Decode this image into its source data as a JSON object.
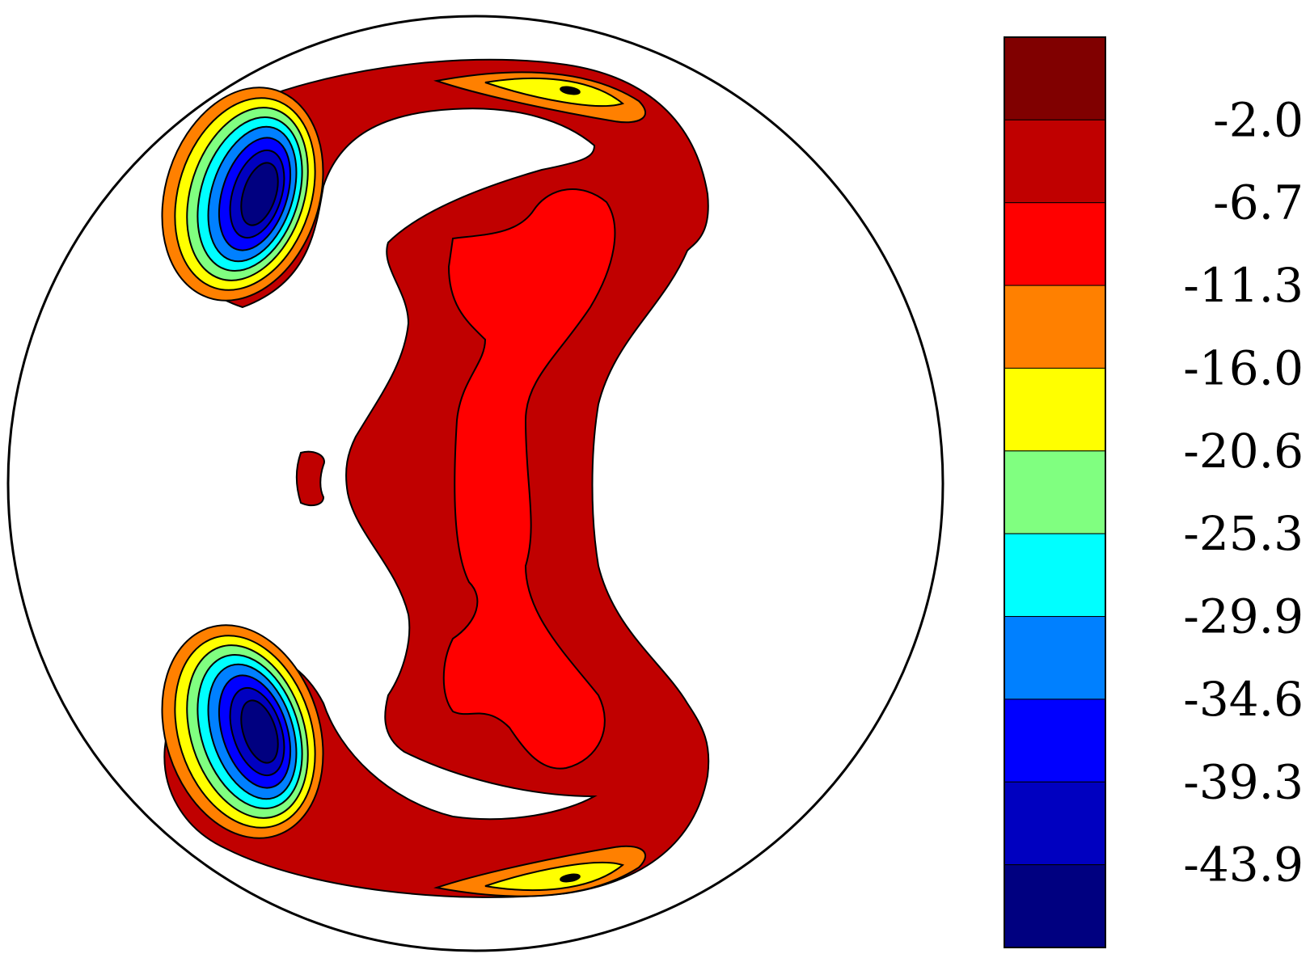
{
  "chart_data": {
    "type": "heatmap",
    "title": "",
    "xlabel": "",
    "ylabel": "",
    "domain_shape": "circle",
    "colorbar": {
      "placement": "right",
      "orientation": "vertical",
      "tick_labels": [
        "-2.0",
        "-6.7",
        "-11.3",
        "-16.0",
        "-20.6",
        "-25.3",
        "-29.9",
        "-34.6",
        "-39.3",
        "-43.9"
      ],
      "levels": [
        -2.0,
        -6.7,
        -11.3,
        -16.0,
        -20.6,
        -25.3,
        -29.9,
        -34.6,
        -39.3,
        -43.9
      ],
      "colors": [
        "#800000",
        "#c00000",
        "#ff0000",
        "#ff8000",
        "#ffff00",
        "#80ff80",
        "#00ffff",
        "#0080ff",
        "#0000ff",
        "#0000c0",
        "#000080"
      ]
    },
    "features": [
      {
        "name": "central-band",
        "min_level": -11.3
      },
      {
        "name": "upper-left-vortex",
        "min_level": -43.9
      },
      {
        "name": "lower-left-vortex",
        "min_level": -43.9
      },
      {
        "name": "upper-arc-streak",
        "min_level": -20.6
      },
      {
        "name": "lower-arc-streak",
        "min_level": -20.6
      },
      {
        "name": "small-left-patch",
        "min_level": -6.7
      }
    ],
    "grid": false
  }
}
